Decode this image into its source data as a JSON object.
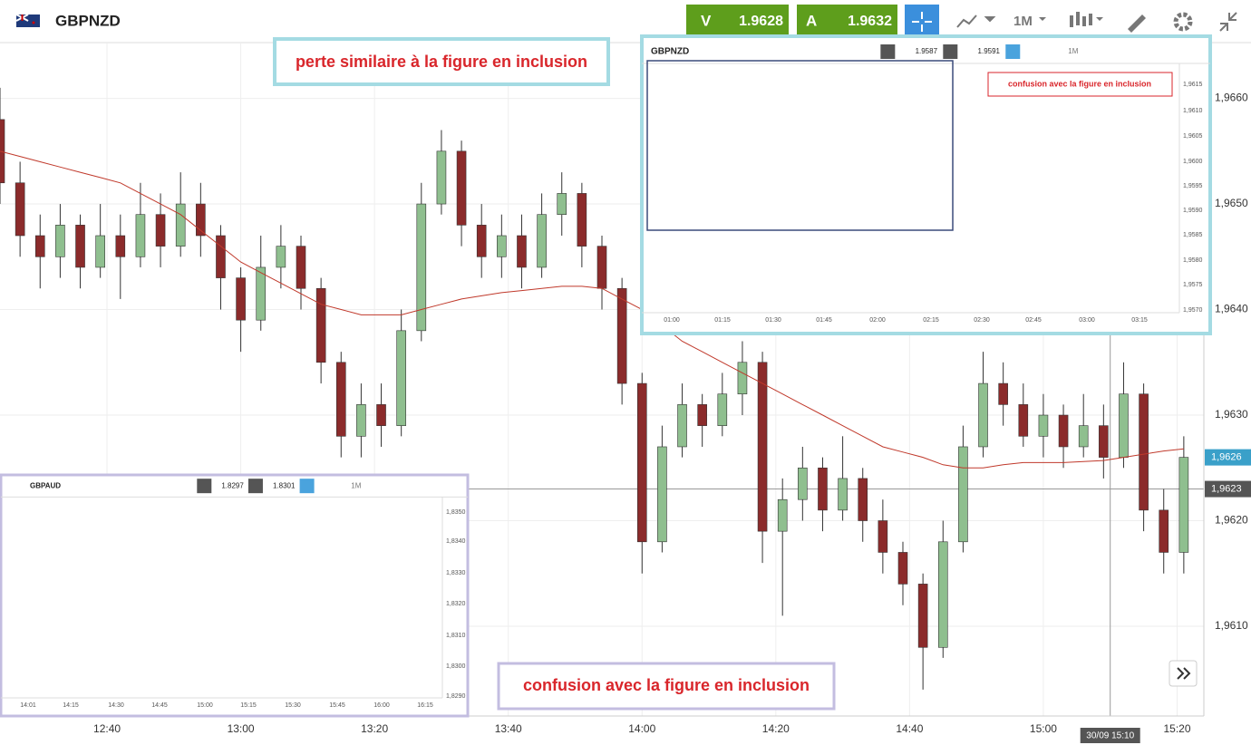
{
  "toolbar": {
    "symbol": "GBPNZD",
    "sell_label": "V",
    "sell_price": "1.9628",
    "buy_label": "A",
    "buy_price": "1.9632",
    "interval": "1M"
  },
  "chart_data": {
    "type": "candlestick",
    "x": [
      "12:24",
      "12:27",
      "12:30",
      "12:33",
      "12:36",
      "12:39",
      "12:42",
      "12:45",
      "12:48",
      "12:51",
      "12:54",
      "12:57",
      "13:00",
      "13:03",
      "13:06",
      "13:09",
      "13:12",
      "13:15",
      "13:18",
      "13:21",
      "13:24",
      "13:27",
      "13:30",
      "13:33",
      "13:36",
      "13:39",
      "13:42",
      "13:45",
      "13:48",
      "13:51",
      "13:54",
      "13:57",
      "14:00",
      "14:03",
      "14:06",
      "14:09",
      "14:12",
      "14:15",
      "14:18",
      "14:21",
      "14:24",
      "14:27",
      "14:30",
      "14:33",
      "14:36",
      "14:39",
      "14:42",
      "14:45",
      "14:48",
      "14:51",
      "14:54",
      "14:57",
      "15:00",
      "15:03",
      "15:06",
      "15:09",
      "15:12",
      "15:15",
      "15:18",
      "15:21"
    ],
    "open": [
      1.9658,
      1.9652,
      1.9647,
      1.9645,
      1.9648,
      1.9644,
      1.9647,
      1.9645,
      1.9649,
      1.9646,
      1.965,
      1.9647,
      1.9643,
      1.9639,
      1.9644,
      1.9646,
      1.9642,
      1.9635,
      1.9628,
      1.9631,
      1.9629,
      1.9638,
      1.965,
      1.9655,
      1.9648,
      1.9645,
      1.9647,
      1.9644,
      1.9649,
      1.9651,
      1.9646,
      1.9642,
      1.9633,
      1.9618,
      1.9627,
      1.9631,
      1.9629,
      1.9632,
      1.9635,
      1.9619,
      1.9622,
      1.9625,
      1.9621,
      1.9624,
      1.962,
      1.9617,
      1.9614,
      1.9608,
      1.9618,
      1.9627,
      1.9633,
      1.9631,
      1.9628,
      1.963,
      1.9627,
      1.9629,
      1.9626,
      1.9632,
      1.9621,
      1.9617
    ],
    "high": [
      1.9661,
      1.9654,
      1.9649,
      1.965,
      1.9649,
      1.965,
      1.9649,
      1.9652,
      1.9651,
      1.9653,
      1.9652,
      1.9648,
      1.9644,
      1.9647,
      1.9648,
      1.9647,
      1.9643,
      1.9636,
      1.9633,
      1.9633,
      1.964,
      1.9652,
      1.9657,
      1.9656,
      1.965,
      1.9649,
      1.9649,
      1.9651,
      1.9653,
      1.9652,
      1.9647,
      1.9643,
      1.9634,
      1.9629,
      1.9633,
      1.9632,
      1.9634,
      1.9637,
      1.9636,
      1.9624,
      1.9627,
      1.9626,
      1.9628,
      1.9625,
      1.9622,
      1.9618,
      1.9615,
      1.962,
      1.9629,
      1.9636,
      1.9635,
      1.9633,
      1.9632,
      1.9631,
      1.9632,
      1.9631,
      1.9635,
      1.9633,
      1.9623,
      1.9628
    ],
    "low": [
      1.965,
      1.9645,
      1.9642,
      1.9643,
      1.9642,
      1.9643,
      1.9641,
      1.9644,
      1.9644,
      1.9645,
      1.9645,
      1.964,
      1.9636,
      1.9638,
      1.9642,
      1.964,
      1.9633,
      1.9626,
      1.9626,
      1.9627,
      1.9628,
      1.9637,
      1.9649,
      1.9646,
      1.9643,
      1.9643,
      1.9642,
      1.9643,
      1.9647,
      1.9644,
      1.964,
      1.9631,
      1.9615,
      1.9617,
      1.9626,
      1.9627,
      1.9628,
      1.963,
      1.9616,
      1.9611,
      1.962,
      1.9619,
      1.962,
      1.9618,
      1.9615,
      1.9612,
      1.9604,
      1.9607,
      1.9617,
      1.9626,
      1.9629,
      1.9627,
      1.9626,
      1.9625,
      1.9626,
      1.9624,
      1.9625,
      1.9619,
      1.9615,
      1.9615
    ],
    "close": [
      1.9652,
      1.9647,
      1.9645,
      1.9648,
      1.9644,
      1.9647,
      1.9645,
      1.9649,
      1.9646,
      1.965,
      1.9647,
      1.9643,
      1.9639,
      1.9644,
      1.9646,
      1.9642,
      1.9635,
      1.9628,
      1.9631,
      1.9629,
      1.9638,
      1.965,
      1.9655,
      1.9648,
      1.9645,
      1.9647,
      1.9644,
      1.9649,
      1.9651,
      1.9646,
      1.9642,
      1.9633,
      1.9618,
      1.9627,
      1.9631,
      1.9629,
      1.9632,
      1.9635,
      1.9619,
      1.9622,
      1.9625,
      1.9621,
      1.9624,
      1.962,
      1.9617,
      1.9614,
      1.9608,
      1.9618,
      1.9627,
      1.9633,
      1.9631,
      1.9628,
      1.963,
      1.9627,
      1.9629,
      1.9626,
      1.9632,
      1.9621,
      1.9617,
      1.9626
    ],
    "up_color": "#8fbf8f",
    "down_color": "#8b2b2b",
    "series": [
      {
        "color": "#c0392b",
        "values": [
          1.9655,
          1.96545,
          1.9654,
          1.96535,
          1.9653,
          1.96525,
          1.9652,
          1.9651,
          1.965,
          1.9649,
          1.96475,
          1.9646,
          1.96445,
          1.96435,
          1.96425,
          1.96415,
          1.96405,
          1.964,
          1.96395,
          1.96395,
          1.96395,
          1.964,
          1.96405,
          1.9641,
          1.96413,
          1.96416,
          1.96418,
          1.9642,
          1.96422,
          1.96422,
          1.9642,
          1.9641,
          1.964,
          1.96385,
          1.9637,
          1.9636,
          1.9635,
          1.9634,
          1.9633,
          1.9632,
          1.9631,
          1.963,
          1.9629,
          1.9628,
          1.9627,
          1.96265,
          1.9626,
          1.96253,
          1.9625,
          1.9625,
          1.96253,
          1.96255,
          1.96255,
          1.96255,
          1.96256,
          1.96257,
          1.9626,
          1.96263,
          1.96266,
          1.96268
        ]
      }
    ],
    "xlim": [
      "12:24",
      "15:24"
    ],
    "xticks": [
      "12:40",
      "13:00",
      "13:20",
      "13:40",
      "14:00",
      "14:20",
      "14:40",
      "15:00",
      "15:20"
    ],
    "ylim": [
      1.96015,
      1.96652
    ],
    "yticks": [
      {
        "value": 1.961,
        "label": "1,9610"
      },
      {
        "value": 1.962,
        "label": "1,9620"
      },
      {
        "value": 1.963,
        "label": "1,9630"
      },
      {
        "value": 1.964,
        "label": "1,9640"
      },
      {
        "value": 1.965,
        "label": "1,9650"
      },
      {
        "value": 1.966,
        "label": "1,9660"
      }
    ],
    "grid": true,
    "last_price": {
      "value": 1.9626,
      "label": "1,9626"
    },
    "crosshair": {
      "y": {
        "value": 1.9623,
        "label": "1,9623"
      },
      "x": "15:10",
      "x_label": "30/09 15:10"
    }
  },
  "annotations": [
    "perte similaire à la figure en inclusion",
    "confusion avec la figure en inclusion"
  ],
  "insets": [
    {
      "symbol": "GBPNZD",
      "sell_price": "1.9587",
      "buy_price": "1.9591",
      "interval": "1M",
      "note": "confusion avec la figure en inclusion",
      "times": [
        "01:00",
        "01:15",
        "01:30",
        "01:45",
        "02:00",
        "02:15",
        "02:30",
        "02:45",
        "03:00",
        "03:15"
      ],
      "prices": [
        "1,9615",
        "1,9610",
        "1,9605",
        "1,9600",
        "1,9595",
        "1,9590",
        "1,9585",
        "1,9580",
        "1,9575",
        "1,9570"
      ]
    },
    {
      "symbol": "GBPAUD",
      "sell_price": "1.8297",
      "buy_price": "1.8301",
      "interval": "1M",
      "times": [
        "14:01",
        "14:15",
        "14:30",
        "14:45",
        "15:00",
        "15:15",
        "15:30",
        "15:45",
        "16:00",
        "16:15"
      ],
      "prices": [
        "1,8350",
        "1,8340",
        "1,8330",
        "1,8320",
        "1,8310",
        "1,8300",
        "1,8290"
      ]
    }
  ]
}
